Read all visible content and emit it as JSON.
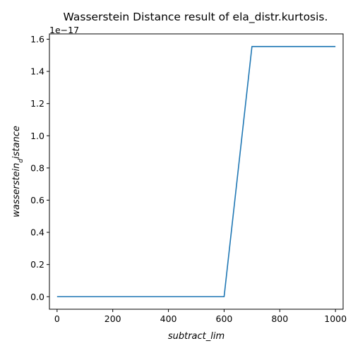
{
  "chart_data": {
    "type": "line",
    "title": "Wasserstein Distance result of ela_distr.kurtosis.",
    "xlabel": "subtract_lim",
    "ylabel_main": "wasserstein",
    "ylabel_sub": "d",
    "ylabel_tail": "istance",
    "y_offset_label": "1e−17",
    "xlim": [
      -27.5,
      1027.5
    ],
    "ylim": [
      -0.0778,
      1.633
    ],
    "x_ticks": [
      0,
      200,
      400,
      600,
      800,
      1000
    ],
    "x_tick_labels": [
      "0",
      "200",
      "400",
      "600",
      "800",
      "1000"
    ],
    "y_ticks": [
      0.0,
      0.2,
      0.4,
      0.6,
      0.8,
      1.0,
      1.2,
      1.4,
      1.6
    ],
    "y_tick_labels": [
      "0.0",
      "0.2",
      "0.4",
      "0.6",
      "0.8",
      "1.0",
      "1.2",
      "1.4",
      "1.6"
    ],
    "grid": false,
    "series": [
      {
        "color": "#1f77b4",
        "x": [
          0,
          100,
          200,
          300,
          400,
          500,
          600,
          700,
          800,
          900,
          1000
        ],
        "y": [
          0,
          0,
          0,
          0,
          0,
          0,
          0,
          1.5543,
          1.5543,
          1.5543,
          1.5543
        ]
      }
    ]
  }
}
